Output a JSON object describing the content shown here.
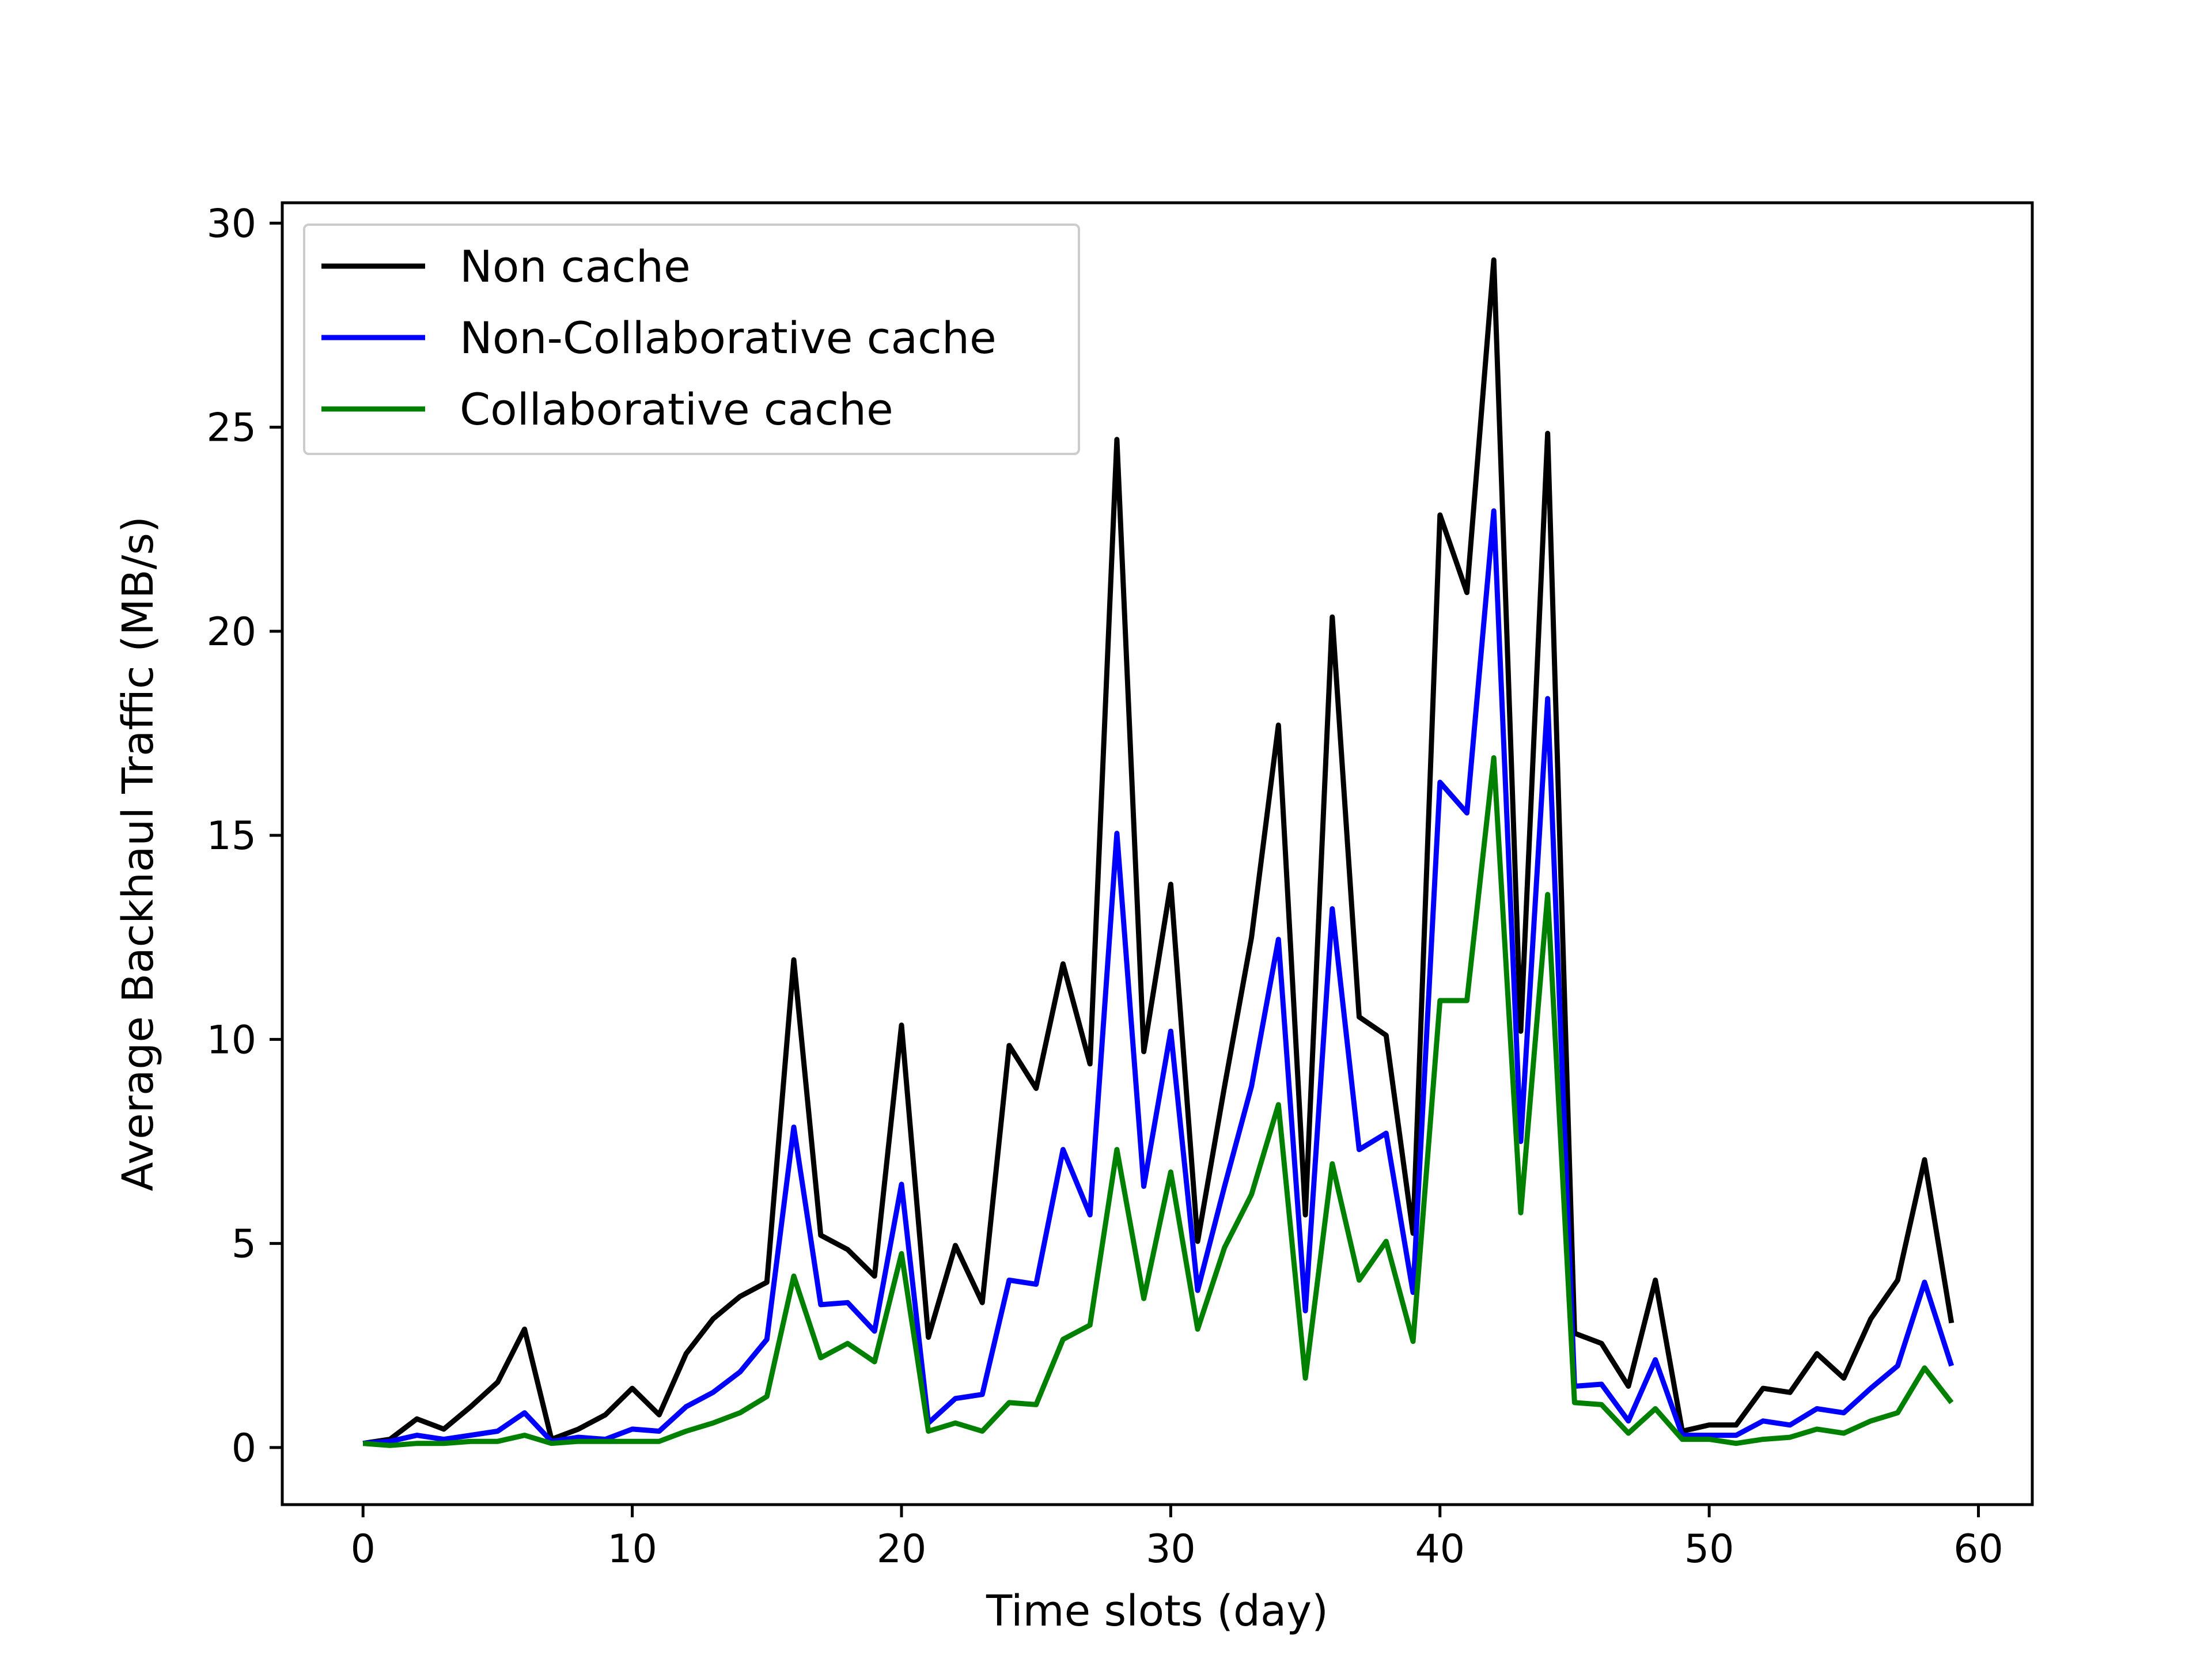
{
  "chart_data": {
    "type": "line",
    "xlabel": "Time slots (day)",
    "ylabel": "Average Backhaul Traffic (MB/s)",
    "xlim": [
      -3,
      62
    ],
    "ylim": [
      -1.4,
      30.5
    ],
    "xticks": [
      0,
      10,
      20,
      30,
      40,
      50,
      60
    ],
    "yticks": [
      0,
      5,
      10,
      15,
      20,
      25,
      30
    ],
    "grid": false,
    "legend_position": "top-left",
    "x": [
      0,
      1,
      2,
      3,
      4,
      5,
      6,
      7,
      8,
      9,
      10,
      11,
      12,
      13,
      14,
      15,
      16,
      17,
      18,
      19,
      20,
      21,
      22,
      23,
      24,
      25,
      26,
      27,
      28,
      29,
      30,
      31,
      32,
      33,
      34,
      35,
      36,
      37,
      38,
      39,
      40,
      41,
      42,
      43,
      44,
      45,
      46,
      47,
      48,
      49,
      50,
      51,
      52,
      53,
      54,
      55,
      56,
      57,
      58,
      59
    ],
    "series": [
      {
        "name": "Non cache",
        "color": "#000000",
        "values": [
          0.1,
          0.2,
          0.7,
          0.45,
          1.0,
          1.6,
          2.9,
          0.2,
          0.45,
          0.8,
          1.45,
          0.8,
          2.3,
          3.15,
          3.7,
          4.05,
          11.95,
          5.2,
          4.85,
          4.2,
          10.35,
          2.7,
          4.95,
          3.55,
          9.85,
          8.8,
          11.85,
          9.4,
          24.7,
          9.7,
          13.8,
          5.05,
          8.85,
          12.5,
          17.7,
          5.7,
          20.35,
          10.55,
          10.1,
          5.25,
          22.85,
          20.95,
          29.1,
          10.2,
          24.85,
          2.8,
          2.55,
          1.5,
          4.1,
          0.4,
          0.55,
          0.55,
          1.45,
          1.35,
          2.3,
          1.7,
          3.15,
          4.1,
          7.05,
          3.05
        ]
      },
      {
        "name": "Non-Collaborative cache",
        "color": "#0000ff",
        "values": [
          0.1,
          0.15,
          0.3,
          0.2,
          0.3,
          0.4,
          0.85,
          0.15,
          0.25,
          0.2,
          0.45,
          0.4,
          1.0,
          1.35,
          1.85,
          2.65,
          7.85,
          3.5,
          3.55,
          2.85,
          6.45,
          0.6,
          1.2,
          1.3,
          4.1,
          4.0,
          7.3,
          5.7,
          15.05,
          6.4,
          10.2,
          3.85,
          6.4,
          8.85,
          12.45,
          3.35,
          13.2,
          7.3,
          7.7,
          3.8,
          16.3,
          15.55,
          22.95,
          7.5,
          18.35,
          1.5,
          1.55,
          0.65,
          2.15,
          0.3,
          0.3,
          0.3,
          0.65,
          0.55,
          0.95,
          0.85,
          1.45,
          2.0,
          4.05,
          2.0
        ]
      },
      {
        "name": "Collaborative cache",
        "color": "#008000",
        "values": [
          0.1,
          0.05,
          0.1,
          0.1,
          0.15,
          0.15,
          0.3,
          0.1,
          0.15,
          0.15,
          0.15,
          0.15,
          0.4,
          0.6,
          0.85,
          1.25,
          4.2,
          2.2,
          2.55,
          2.1,
          4.75,
          0.4,
          0.6,
          0.4,
          1.1,
          1.05,
          2.65,
          3.0,
          7.3,
          3.65,
          6.75,
          2.9,
          4.9,
          6.2,
          8.4,
          1.7,
          6.95,
          4.1,
          5.05,
          2.6,
          10.95,
          10.95,
          16.9,
          5.75,
          13.55,
          1.1,
          1.05,
          0.35,
          0.95,
          0.2,
          0.2,
          0.1,
          0.2,
          0.25,
          0.45,
          0.35,
          0.65,
          0.85,
          1.95,
          1.1
        ]
      }
    ]
  }
}
